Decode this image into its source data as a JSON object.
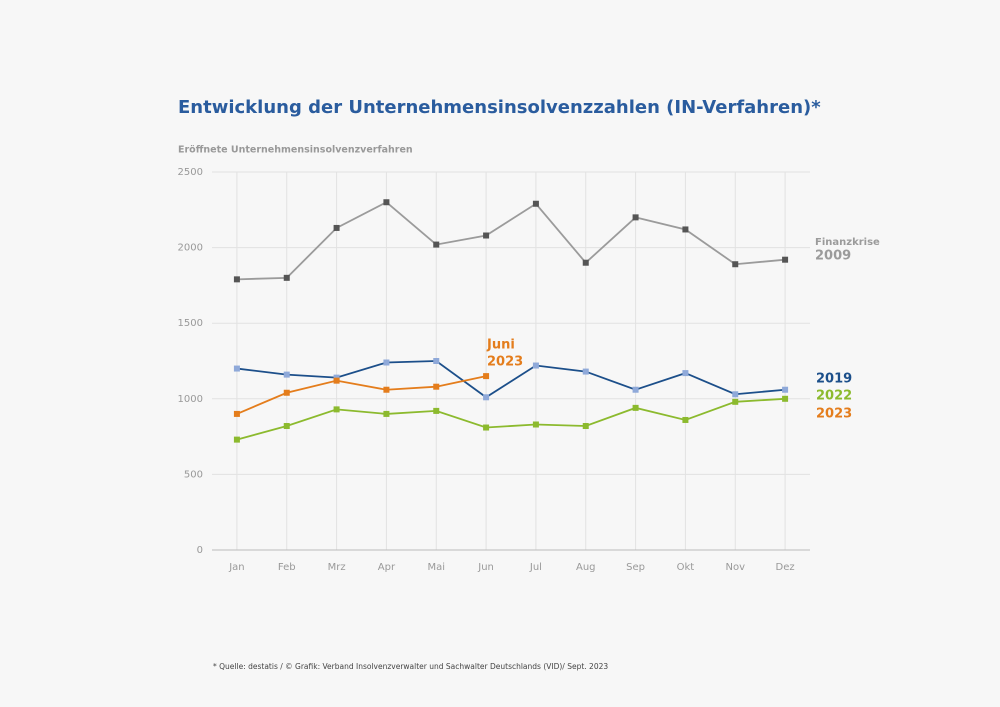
{
  "chart_data": {
    "type": "line",
    "title": "Entwicklung der Unternehmensinsolvenzzahlen (IN-Verfahren)*",
    "y_label": "Eröffnete Unternehmensinsolvenzverfahren",
    "categories": [
      "Jan",
      "Feb",
      "Mrz",
      "Apr",
      "Mai",
      "Jun",
      "Jul",
      "Aug",
      "Sep",
      "Okt",
      "Nov",
      "Dez"
    ],
    "series": [
      {
        "name": "2009",
        "color": "#9b9b9b",
        "marker_color": "#555555",
        "values": [
          1790,
          1800,
          2130,
          2300,
          2020,
          2080,
          2290,
          1900,
          2200,
          2120,
          1890,
          1920
        ]
      },
      {
        "name": "2019",
        "color": "#1c4f8a",
        "marker_color": "#8fa9d9",
        "values": [
          1200,
          1160,
          1140,
          1240,
          1250,
          1010,
          1220,
          1180,
          1060,
          1170,
          1030,
          1060
        ]
      },
      {
        "name": "2022",
        "color": "#8cba2e",
        "marker_color": "#8cba2e",
        "values": [
          730,
          820,
          930,
          900,
          920,
          810,
          830,
          820,
          940,
          860,
          980,
          1000
        ]
      },
      {
        "name": "2023",
        "color": "#e47d1c",
        "marker_color": "#e47d1c",
        "values": [
          900,
          1040,
          1120,
          1060,
          1080,
          1150,
          null,
          null,
          null,
          null,
          null,
          null
        ]
      }
    ],
    "annotations": [
      {
        "text": "Finanzkrise"
      },
      {
        "text": "Juni"
      }
    ],
    "ylim": [
      0,
      2500
    ],
    "yticks": [
      0,
      500,
      1000,
      1500,
      2000,
      2500
    ],
    "grid": true,
    "source": "* Quelle: destatis / © Grafik: Verband Insolvenzverwalter und Sachwalter Deutschlands (VID)/ Sept. 2023"
  }
}
